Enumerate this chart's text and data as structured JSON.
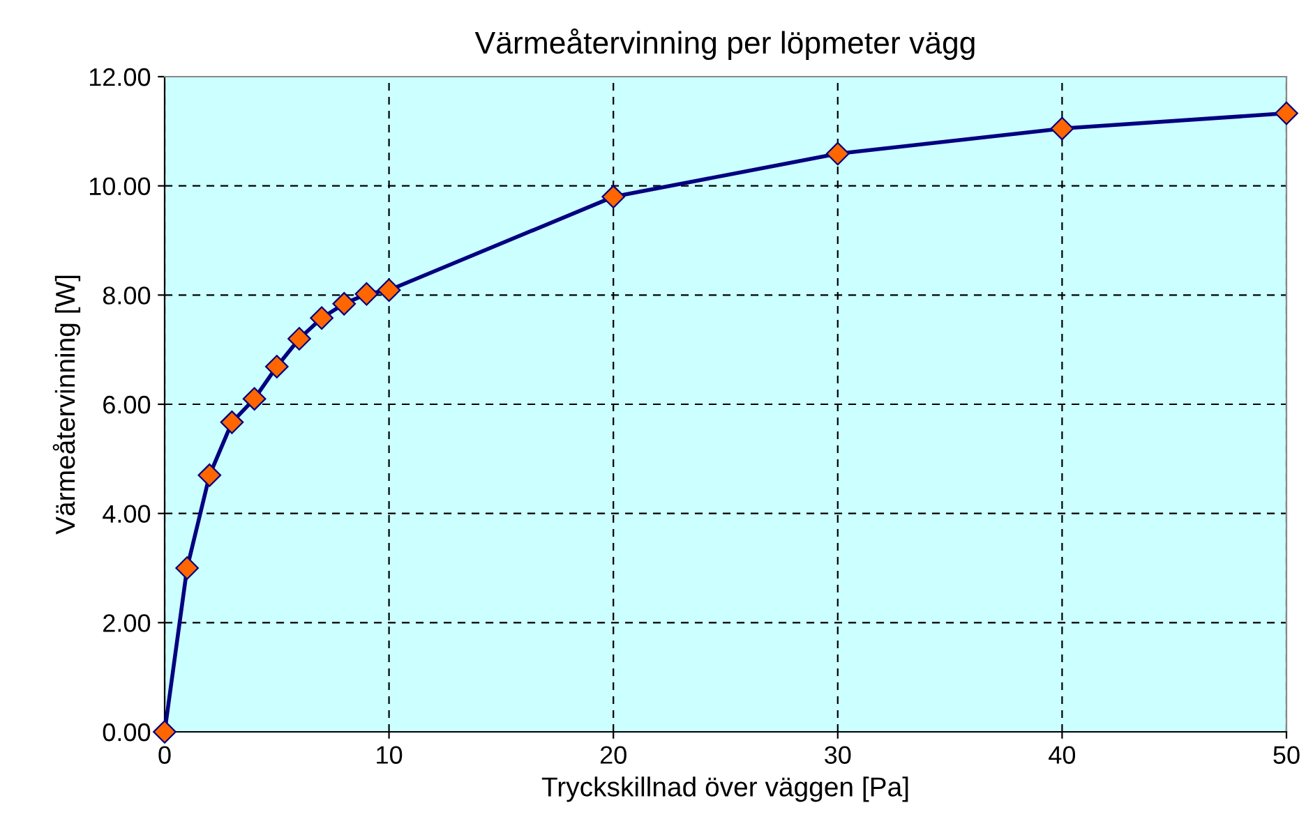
{
  "chart_data": {
    "type": "line",
    "title": "Värmeåtervinning per löpmeter vägg",
    "xlabel": "Tryckskillnad över väggen [Pa]",
    "ylabel": "Värmeåtervinning [W]",
    "x": [
      0,
      1,
      2,
      3,
      4,
      5,
      6,
      7,
      8,
      9,
      10,
      20,
      30,
      40,
      50
    ],
    "series": [
      {
        "color": "#000080",
        "values": [
          0,
          3.0,
          4.7,
          5.67,
          6.1,
          6.69,
          7.2,
          7.58,
          7.84,
          8.02,
          8.09,
          9.8,
          10.59,
          11.05,
          11.33
        ]
      }
    ],
    "marker": "diamond",
    "line_style": "solid",
    "grid": true,
    "xlim": [
      0,
      50
    ],
    "xticks": [
      0,
      10,
      20,
      30,
      40,
      50
    ],
    "ylim": [
      0,
      12
    ],
    "yticks": [
      {
        "value": 0,
        "label": "0.00"
      },
      {
        "value": 2,
        "label": "2.00"
      },
      {
        "value": 4,
        "label": "4.00"
      },
      {
        "value": 6,
        "label": "6.00"
      },
      {
        "value": 8,
        "label": "8.00"
      },
      {
        "value": 10,
        "label": "10.00"
      },
      {
        "value": 12,
        "label": "12.00"
      }
    ]
  }
}
